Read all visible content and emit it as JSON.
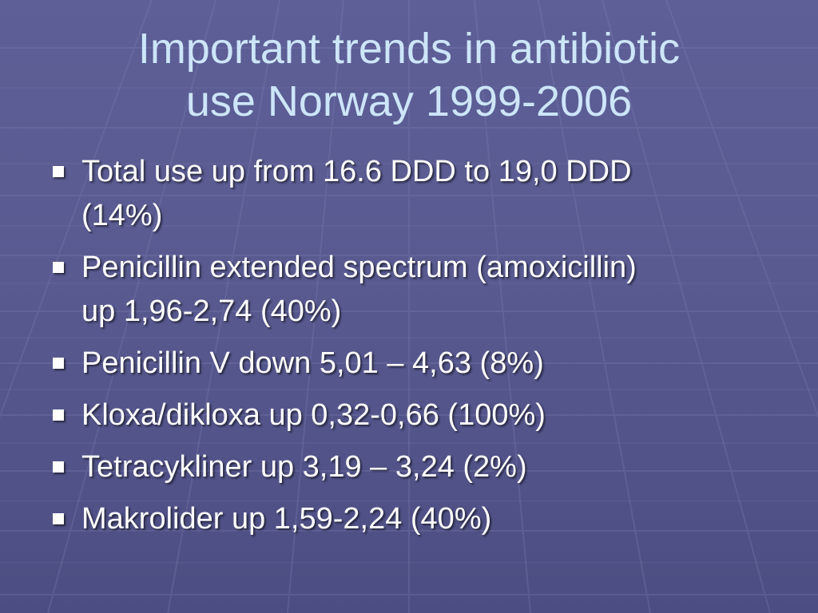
{
  "slide": {
    "title_line1": "Important trends in antibiotic",
    "title_line2": "use Norway 1999-2006",
    "bullets": [
      {
        "line1": "Total use up from 16.6 DDD to 19,0 DDD",
        "line2": "(14%)"
      },
      {
        "line1": "Penicillin extended spectrum (amoxicillin)",
        "line2": "up 1,96-2,74 (40%)"
      },
      {
        "line1": "Penicillin V down 5,01 – 4,63 (8%)",
        "line2": ""
      },
      {
        "line1": "Kloxa/dikloxa up 0,32-0,66 (100%)",
        "line2": ""
      },
      {
        "line1": "Tetracykliner up 3,19 – 3,24 (2%)",
        "line2": ""
      },
      {
        "line1": "Makrolider up 1,59-2,24 (40%)",
        "line2": ""
      }
    ]
  },
  "colors": {
    "background": "#585a90",
    "title": "#cde5f8",
    "body_text": "#ffffff",
    "grid_lines": "#7d80b2"
  }
}
